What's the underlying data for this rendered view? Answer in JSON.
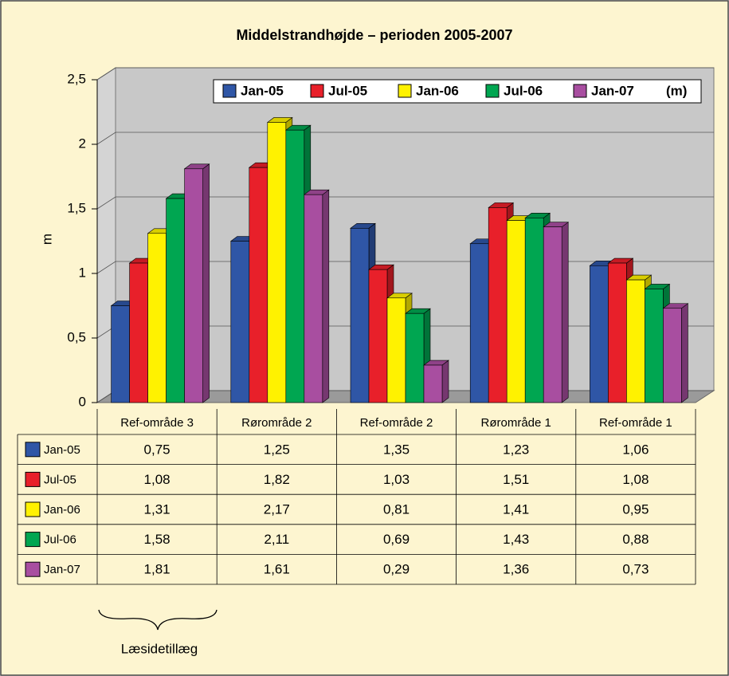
{
  "chart_data": {
    "type": "bar3d",
    "title": "Middelstrandhøjde – perioden 2005-2007",
    "y_label": "m",
    "legend_unit": "(m)",
    "annotation": "Læsidetillæg",
    "categories": [
      "Ref-område 3",
      "Rørområde 2",
      "Ref-område 2",
      "Rørområde 1",
      "Ref-område 1"
    ],
    "series": [
      {
        "name": "Jan-05",
        "color": "#2f56a6",
        "values": [
          0.75,
          1.25,
          1.35,
          1.23,
          1.06
        ],
        "value_labels": [
          "0,75",
          "1,25",
          "1,35",
          "1,23",
          "1,06"
        ]
      },
      {
        "name": "Jul-05",
        "color": "#e8202a",
        "values": [
          1.08,
          1.82,
          1.03,
          1.51,
          1.08
        ],
        "value_labels": [
          "1,08",
          "1,82",
          "1,03",
          "1,51",
          "1,08"
        ]
      },
      {
        "name": "Jan-06",
        "color": "#fff200",
        "values": [
          1.31,
          2.17,
          0.81,
          1.41,
          0.95
        ],
        "value_labels": [
          "1,31",
          "2,17",
          "0,81",
          "1,41",
          "0,95"
        ]
      },
      {
        "name": "Jul-06",
        "color": "#00a651",
        "values": [
          1.58,
          2.11,
          0.69,
          1.43,
          0.88
        ],
        "value_labels": [
          "1,58",
          "2,11",
          "0,69",
          "1,43",
          "0,88"
        ]
      },
      {
        "name": "Jan-07",
        "color": "#a84ea0",
        "values": [
          1.81,
          1.61,
          0.29,
          1.36,
          0.73
        ],
        "value_labels": [
          "1,81",
          "1,61",
          "0,29",
          "1,36",
          "0,73"
        ]
      }
    ],
    "ylim": [
      0,
      2.5
    ],
    "yticks": [
      0,
      {
        "value": 0.5,
        "label": "0,5"
      },
      1,
      {
        "value": 1.5,
        "label": "1,5"
      },
      2,
      {
        "value": 2.5,
        "label": "2,5"
      }
    ],
    "grid": true
  }
}
